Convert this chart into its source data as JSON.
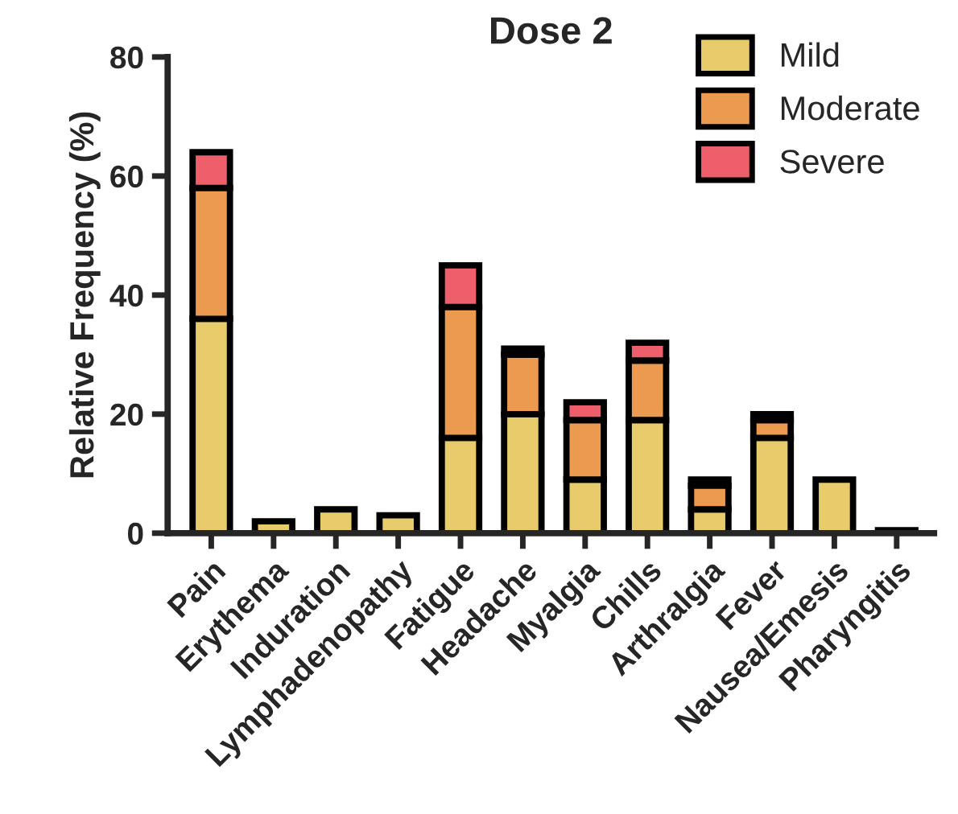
{
  "chart_data": {
    "type": "bar",
    "title": "Dose 2",
    "ylabel": "Relative Frequency (%)",
    "stacked": true,
    "legend": "top right",
    "grid": false,
    "categories": [
      "Pain",
      "Erythema",
      "Induration",
      "Lymphadenopathy",
      "Fatigue",
      "Headache",
      "Myalgia",
      "Chills",
      "Arthralgia",
      "Fever",
      "Nausea/Emesis",
      "Pharyngitis"
    ],
    "series": [
      {
        "name": "Mild",
        "color": "#e8cb6a",
        "values": [
          36,
          2,
          4,
          3,
          16,
          20,
          9,
          19,
          4,
          16,
          9,
          0.5
        ]
      },
      {
        "name": "Moderate",
        "color": "#eb9a4f",
        "values": [
          22,
          null,
          null,
          null,
          22,
          10,
          10,
          10,
          4,
          3,
          null,
          null
        ]
      },
      {
        "name": "Severe",
        "color": "#ef5f6b",
        "values": [
          6,
          null,
          null,
          null,
          7,
          1,
          3,
          3,
          1,
          1,
          null,
          null
        ]
      }
    ],
    "ylim": [
      0,
      80
    ],
    "yticks": [
      0,
      20,
      40,
      60,
      80
    ]
  }
}
